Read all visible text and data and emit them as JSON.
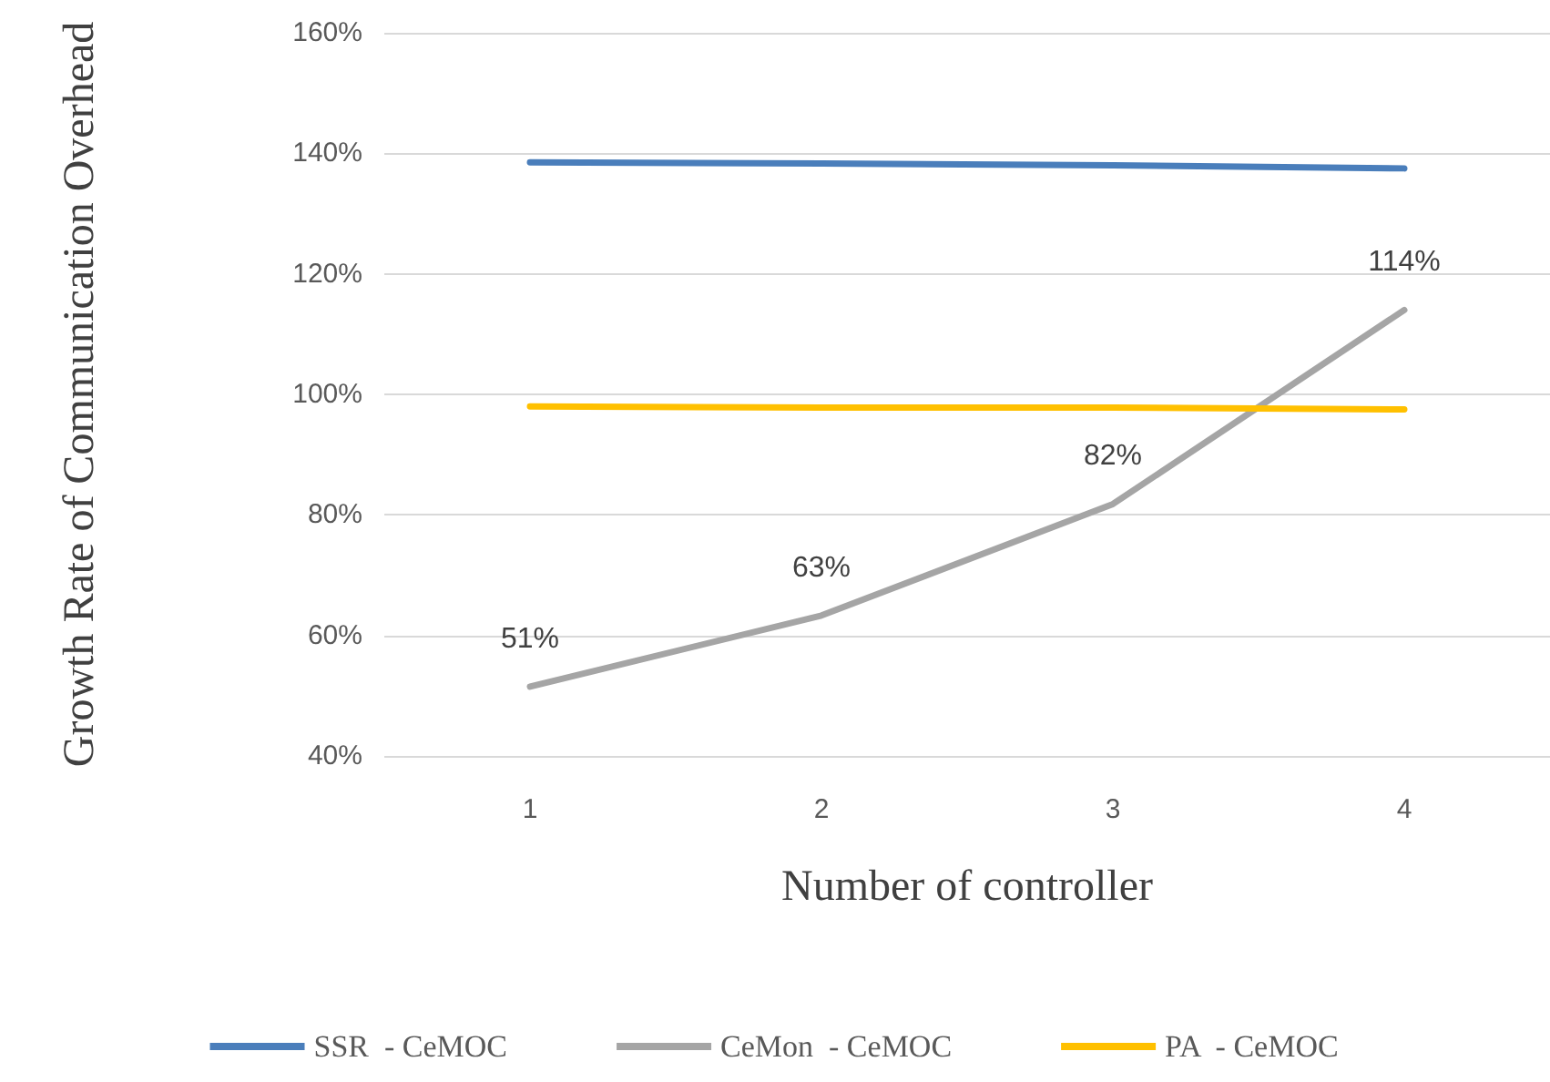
{
  "chart_data": {
    "type": "line",
    "xlabel": "Number of controller",
    "ylabel": "Growth Rate of Communication Overhead",
    "categories": [
      "1",
      "2",
      "3",
      "4"
    ],
    "series": [
      {
        "name": "SSR  - CeMOC",
        "color": "#4a7ebb",
        "values": [
          138.5,
          138.3,
          138,
          137.5
        ]
      },
      {
        "name": "CeMon  - CeMOC",
        "color": "#a5a5a5",
        "values": [
          51.5,
          63.3,
          81.8,
          114
        ],
        "value_labels": [
          "51%",
          "63%",
          "82%",
          "114%"
        ]
      },
      {
        "name": "PA  - CeMOC",
        "color": "#ffc000",
        "values": [
          98,
          97.8,
          97.8,
          97.5
        ]
      }
    ],
    "ylim": [
      40,
      160
    ],
    "yticks": [
      {
        "value": 40,
        "label": "40%"
      },
      {
        "value": 60,
        "label": "60%"
      },
      {
        "value": 80,
        "label": "80%"
      },
      {
        "value": 100,
        "label": "100%"
      },
      {
        "value": 120,
        "label": "120%"
      },
      {
        "value": 140,
        "label": "140%"
      },
      {
        "value": 160,
        "label": "160%"
      }
    ],
    "grid": "y",
    "legend": "bottom",
    "marker": "none",
    "line_style": "solid"
  }
}
